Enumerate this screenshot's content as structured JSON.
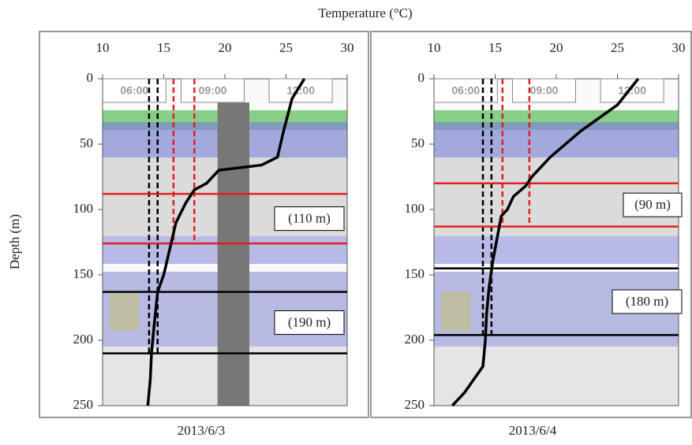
{
  "chart_data": [
    {
      "type": "line",
      "title": "Temperature (°C)",
      "ylabel": "Depth (m)",
      "xlabel": "2013/6/3",
      "xlim": [
        10,
        30
      ],
      "xticks": [
        10,
        15,
        20,
        25,
        30
      ],
      "ylim": [
        0,
        250
      ],
      "yticks": [
        0,
        50,
        100,
        150,
        200,
        250
      ],
      "y_inverted": true,
      "time_labels": [
        "06:00",
        "09:00",
        "12:00"
      ],
      "series": [
        {
          "color": "#000000",
          "x": [
            26.5,
            25.5,
            24.8,
            24.3,
            23,
            19.5,
            18.5,
            17.5,
            16.8,
            16,
            15.5,
            15,
            14.5,
            14.2,
            14,
            13.9,
            13.7
          ],
          "values": [
            0,
            15,
            40,
            60,
            66,
            70,
            80,
            85,
            95,
            110,
            130,
            150,
            163,
            190,
            210,
            230,
            250
          ]
        }
      ],
      "vlines": [
        {
          "value": 13.8,
          "color": "#000000"
        },
        {
          "value": 14.5,
          "color": "#000000"
        },
        {
          "value": 15.8,
          "color": "#e02020"
        },
        {
          "value": 17.5,
          "color": "#e02020"
        }
      ],
      "hlines": [
        {
          "value": 88,
          "color": "#e02020"
        },
        {
          "value": 126,
          "color": "#e02020"
        },
        {
          "value": 163,
          "color": "#000000"
        },
        {
          "value": 210,
          "color": "#000000"
        }
      ],
      "annotations": [
        "(110 m)",
        "(190 m)"
      ]
    },
    {
      "type": "line",
      "xlabel": "2013/6/4",
      "xlim": [
        10,
        30
      ],
      "xticks": [
        10,
        15,
        20,
        25,
        30
      ],
      "ylim": [
        0,
        250
      ],
      "yticks": [
        0,
        50,
        100,
        150,
        200,
        250
      ],
      "y_inverted": true,
      "time_labels": [
        "06:00",
        "09:00",
        "12:00"
      ],
      "series": [
        {
          "color": "#000000",
          "x": [
            26.7,
            25,
            22,
            19.5,
            18,
            17.5,
            16.5,
            16,
            15.5,
            15.2,
            14.8,
            14.5,
            14.3,
            14.2,
            14,
            12.5,
            11.5
          ],
          "values": [
            0,
            20,
            40,
            60,
            75,
            82,
            90,
            100,
            105,
            120,
            140,
            160,
            180,
            200,
            220,
            240,
            250
          ]
        }
      ],
      "vlines": [
        {
          "value": 14.0,
          "color": "#000000"
        },
        {
          "value": 14.7,
          "color": "#000000"
        },
        {
          "value": 15.6,
          "color": "#e02020"
        },
        {
          "value": 17.8,
          "color": "#e02020"
        }
      ],
      "hlines": [
        {
          "value": 80,
          "color": "#e02020"
        },
        {
          "value": 113,
          "color": "#e02020"
        },
        {
          "value": 145,
          "color": "#000000"
        },
        {
          "value": 196,
          "color": "#000000"
        }
      ],
      "annotations": [
        "(90 m)",
        "(180 m)"
      ]
    }
  ]
}
